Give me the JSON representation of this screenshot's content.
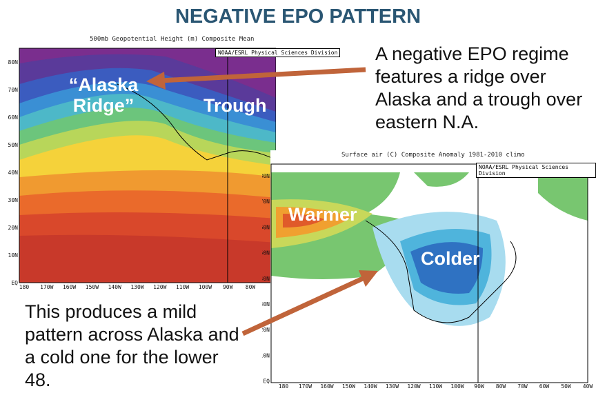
{
  "title": "NEGATIVE EPO PATTERN",
  "map1": {
    "title": "500mb Geopotential Height (m) Composite Mean",
    "credit": "NOAA/ESRL Physical Sciences Division",
    "labels": [
      "“Alaska Ridge”",
      "Trough"
    ],
    "lat": [
      "80N",
      "70N",
      "60N",
      "50N",
      "40N",
      "30N",
      "20N",
      "10N",
      "EQ"
    ],
    "lon": [
      "180",
      "170W",
      "160W",
      "150W",
      "140W",
      "130W",
      "120W",
      "110W",
      "100W",
      "90W",
      "80W"
    ]
  },
  "map2": {
    "title": "Surface air (C) Composite Anomaly 1981-2010 climo",
    "credit": "NOAA/ESRL Physical Sciences Division",
    "labels": [
      "Warmer",
      "Colder"
    ],
    "lat": [
      "80N",
      "70N",
      "60N",
      "50N",
      "40N",
      "30N",
      "20N",
      "10N",
      "EQ"
    ],
    "lon": [
      "180",
      "170W",
      "160W",
      "150W",
      "140W",
      "130W",
      "120W",
      "110W",
      "100W",
      "90W",
      "80W",
      "70W",
      "60W",
      "50W",
      "40W"
    ]
  },
  "notes": [
    "A negative EPO regime features a ridge over Alaska and a trough over eastern N.A.",
    "This produces a mild pattern across Alaska and a cold one for the lower 48."
  ]
}
